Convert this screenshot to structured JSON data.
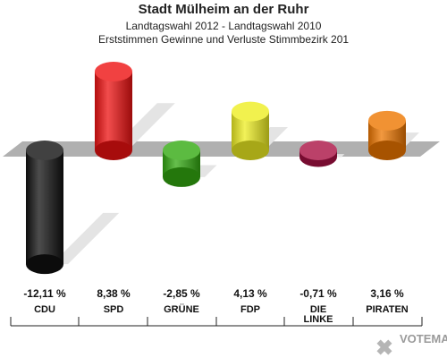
{
  "title": "Stadt Mülheim an der Ruhr",
  "subtitle1": "Landtagswahl 2012 - Landtagswahl 2010",
  "subtitle2": "Erststimmen Gewinne und Verluste Stimmbezirk 201",
  "watermark": "VOTEMANAGER",
  "chart_data": {
    "type": "bar",
    "categories": [
      "CDU",
      "SPD",
      "GRÜNE",
      "FDP",
      "DIE LINKE",
      "PIRATEN"
    ],
    "category_lines": [
      [
        "CDU"
      ],
      [
        "SPD"
      ],
      [
        "GRÜNE"
      ],
      [
        "FDP"
      ],
      [
        "DIE",
        "LINKE"
      ],
      [
        "PIRATEN"
      ]
    ],
    "values": [
      -12.11,
      8.38,
      -2.85,
      4.13,
      -0.71,
      3.16
    ],
    "labels": [
      "-12,11 %",
      "8,38 %",
      "-2,85 %",
      "4,13 %",
      "-0,71 %",
      "3,16 %"
    ],
    "colors": [
      "#111111",
      "#ee1111",
      "#33aa11",
      "#eeee22",
      "#aa1144",
      "#ee7700"
    ],
    "grid": false,
    "legend": "none"
  }
}
